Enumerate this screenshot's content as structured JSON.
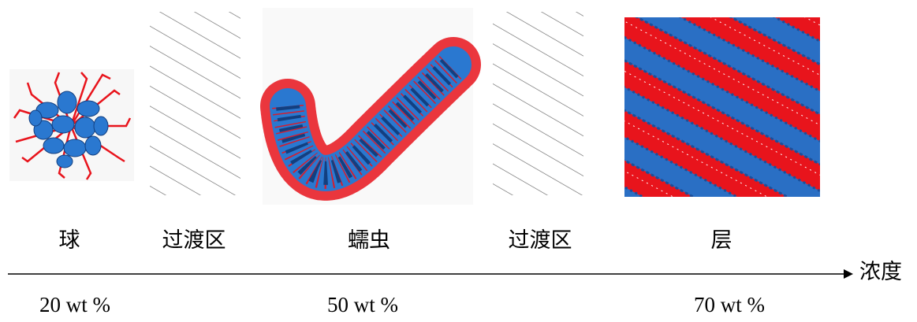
{
  "stages": [
    {
      "label": "球"
    },
    {
      "label": "过渡区"
    },
    {
      "label": "蠕虫"
    },
    {
      "label": "过渡区"
    },
    {
      "label": "层"
    }
  ],
  "axis": {
    "label": "浓度"
  },
  "concentrations": [
    "20 wt %",
    "50 wt %",
    "70 wt %"
  ]
}
